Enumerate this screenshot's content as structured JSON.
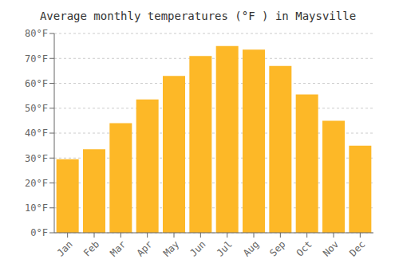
{
  "chart_data": {
    "type": "bar",
    "title": "Average monthly temperatures (°F ) in Maysville",
    "categories": [
      "Jan",
      "Feb",
      "Mar",
      "Apr",
      "May",
      "Jun",
      "Jul",
      "Aug",
      "Sep",
      "Oct",
      "Nov",
      "Dec"
    ],
    "values": [
      29.5,
      33.5,
      44.0,
      53.5,
      63.0,
      71.0,
      75.0,
      73.5,
      67.0,
      55.5,
      45.0,
      35.0
    ],
    "color": "#FDB827",
    "ylim": [
      0,
      80
    ],
    "yticks": [
      {
        "value": 0,
        "label": "0°F"
      },
      {
        "value": 10,
        "label": "10°F"
      },
      {
        "value": 20,
        "label": "20°F"
      },
      {
        "value": 30,
        "label": "30°F"
      },
      {
        "value": 40,
        "label": "40°F"
      },
      {
        "value": 50,
        "label": "50°F"
      },
      {
        "value": 60,
        "label": "60°F"
      },
      {
        "value": 70,
        "label": "70°F"
      },
      {
        "value": 80,
        "label": "80°F"
      }
    ],
    "grid": true
  }
}
